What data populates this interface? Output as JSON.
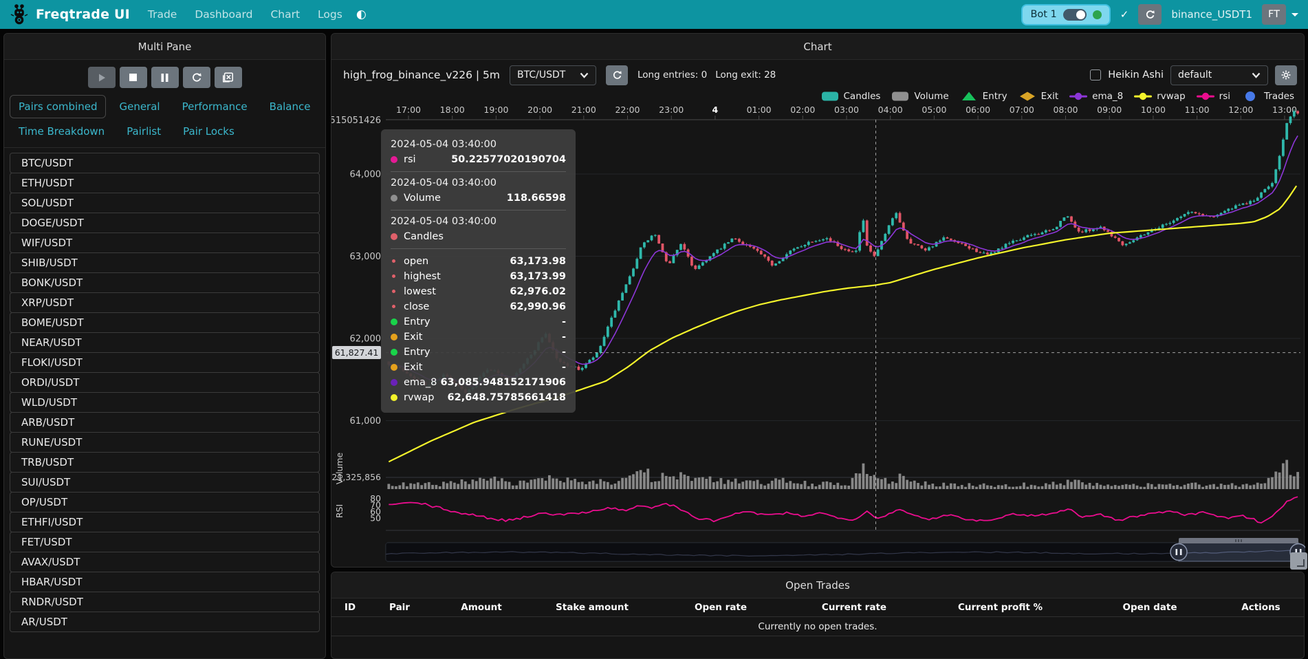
{
  "navbar": {
    "brand": "Freqtrade UI",
    "links": [
      "Trade",
      "Dashboard",
      "Chart",
      "Logs"
    ],
    "bot": {
      "name": "Bot 1",
      "online": true
    },
    "account": "binance_USDT1",
    "avatar": "FT"
  },
  "multi_pane": {
    "title": "Multi Pane",
    "tabs": [
      "Pairs combined",
      "General",
      "Performance",
      "Balance",
      "Time Breakdown",
      "Pairlist",
      "Pair Locks"
    ],
    "active_tab": "Pairs combined",
    "pairs": [
      "BTC/USDT",
      "ETH/USDT",
      "SOL/USDT",
      "DOGE/USDT",
      "WIF/USDT",
      "SHIB/USDT",
      "BONK/USDT",
      "XRP/USDT",
      "BOME/USDT",
      "NEAR/USDT",
      "FLOKI/USDT",
      "ORDI/USDT",
      "WLD/USDT",
      "ARB/USDT",
      "RUNE/USDT",
      "TRB/USDT",
      "SUI/USDT",
      "OP/USDT",
      "ETHFI/USDT",
      "FET/USDT",
      "AVAX/USDT",
      "HBAR/USDT",
      "RNDR/USDT",
      "AR/USDT"
    ]
  },
  "chart_panel": {
    "title": "Chart",
    "strategy": "high_frog_binance_v226 | 5m",
    "pair_select": "BTC/USDT",
    "long_entries_label": "Long entries: 0",
    "long_exit_label": "Long exit: 28",
    "heikin_ashi_label": "Heikin Ashi",
    "plot_config_select": "default",
    "legend": [
      {
        "label": "Candles",
        "swatch": "pill",
        "color": "#2bb3a6"
      },
      {
        "label": "Volume",
        "swatch": "pill",
        "color": "#8f8f8f"
      },
      {
        "label": "Entry",
        "swatch": "triangle",
        "color": "#18c15c"
      },
      {
        "label": "Exit",
        "swatch": "diamond",
        "color": "#d9a426"
      },
      {
        "label": "ema_8",
        "swatch": "line",
        "color": "#8d36d8"
      },
      {
        "label": "rvwap",
        "swatch": "line",
        "color": "#f3f32b"
      },
      {
        "label": "rsi",
        "swatch": "line",
        "color": "#ea0d8e"
      },
      {
        "label": "Trades",
        "swatch": "circle",
        "color": "#4779e8"
      }
    ]
  },
  "tooltip": {
    "sections": [
      {
        "date": "2024-05-04 03:40:00",
        "rows": [
          {
            "label": "rsi",
            "dot": "#e61a96",
            "value": "50.22577020190704"
          }
        ]
      },
      {
        "date": "2024-05-04 03:40:00",
        "rows": [
          {
            "label": "Volume",
            "dot": "#8f8f8f",
            "value": "118.66598"
          }
        ]
      },
      {
        "date": "2024-05-04 03:40:00",
        "rows": [
          {
            "label": "Candles",
            "dot": "#e0606a",
            "value": ""
          },
          {
            "label": "open",
            "dot": "#e0606a",
            "small": true,
            "value": "63,173.98"
          },
          {
            "label": "highest",
            "dot": "#e0606a",
            "small": true,
            "value": "63,173.99"
          },
          {
            "label": "lowest",
            "dot": "#e0606a",
            "small": true,
            "value": "62,976.02"
          },
          {
            "label": "close",
            "dot": "#e0606a",
            "small": true,
            "value": "62,990.96"
          },
          {
            "label": "Entry",
            "dot": "#19d44a",
            "value": "-"
          },
          {
            "label": "Exit",
            "dot": "#e5a11c",
            "value": "-"
          },
          {
            "label": "Entry",
            "dot": "#19d44a",
            "value": "-"
          },
          {
            "label": "Exit",
            "dot": "#e5a11c",
            "value": "-"
          },
          {
            "label": "ema_8",
            "dot": "#6a21b8",
            "value": "63,085.948152171906"
          },
          {
            "label": "rvwap",
            "dot": "#f3f32b",
            "value": "62,648.75785661418"
          }
        ]
      }
    ]
  },
  "chart_data": {
    "type": "candlestick",
    "pair": "BTC/USDT",
    "timeframe": "5m",
    "x_axis": {
      "labels": [
        "17:00",
        "18:00",
        "19:00",
        "20:00",
        "21:00",
        "22:00",
        "23:00",
        "4",
        "01:00",
        "02:00",
        "03:00",
        "04:00",
        "05:00",
        "06:00",
        "07:00",
        "08:00",
        "09:00",
        "10:00",
        "11:00",
        "12:00",
        "13:00"
      ],
      "bold_index": 7
    },
    "price_axis": {
      "ticks": [
        "64,000",
        "63,000",
        "62,000",
        "61,000"
      ],
      "tick_values": [
        64000,
        63000,
        62000,
        61000
      ],
      "top_label": "515051426",
      "pointer_label": "61,827.41",
      "pointer_value": 61827.41
    },
    "volume_axis": {
      "label": "21,325,856",
      "axis_name": "Volume"
    },
    "rsi_axis": {
      "ticks": [
        "80",
        "70",
        "60",
        "50"
      ],
      "tick_values": [
        80,
        70,
        60,
        50
      ],
      "axis_name": "RSI"
    },
    "crosshair": {
      "t": 10.667,
      "time_label": "2024-05-04 03:40:00",
      "price": 61827.41
    },
    "colors": {
      "up": "#2fb8ab",
      "down": "#e05566",
      "volume": "#9b9b9b",
      "ema_8": "#8d36d8",
      "rvwap": "#f3f32b",
      "rsi": "#ea0d8e"
    },
    "price_path": [
      [
        -0.45,
        61720
      ],
      [
        0,
        61600
      ],
      [
        0.5,
        61420
      ],
      [
        0.9,
        61560
      ],
      [
        1.4,
        61330
      ],
      [
        1.9,
        61640
      ],
      [
        2.4,
        61500
      ],
      [
        2.9,
        61810
      ],
      [
        3.2,
        62080
      ],
      [
        3.5,
        61720
      ],
      [
        4.0,
        61620
      ],
      [
        4.4,
        61820
      ],
      [
        4.8,
        62350
      ],
      [
        5.1,
        62700
      ],
      [
        5.4,
        63120
      ],
      [
        5.7,
        63280
      ],
      [
        6.0,
        62880
      ],
      [
        6.3,
        63160
      ],
      [
        6.6,
        62840
      ],
      [
        7.0,
        63010
      ],
      [
        7.5,
        63220
      ],
      [
        8.0,
        63080
      ],
      [
        8.4,
        62890
      ],
      [
        8.8,
        63060
      ],
      [
        9.2,
        63170
      ],
      [
        9.6,
        63230
      ],
      [
        10.0,
        63090
      ],
      [
        10.3,
        63060
      ],
      [
        10.45,
        63480
      ],
      [
        10.55,
        63120
      ],
      [
        10.72,
        62990
      ],
      [
        11.0,
        63300
      ],
      [
        11.2,
        63540
      ],
      [
        11.5,
        63180
      ],
      [
        11.9,
        63080
      ],
      [
        12.3,
        63220
      ],
      [
        12.8,
        63120
      ],
      [
        13.3,
        63010
      ],
      [
        13.8,
        63160
      ],
      [
        14.3,
        63260
      ],
      [
        14.8,
        63320
      ],
      [
        15.1,
        63500
      ],
      [
        15.4,
        63290
      ],
      [
        15.9,
        63360
      ],
      [
        16.4,
        63140
      ],
      [
        16.9,
        63280
      ],
      [
        17.4,
        63400
      ],
      [
        17.9,
        63540
      ],
      [
        18.4,
        63480
      ],
      [
        18.9,
        63590
      ],
      [
        19.4,
        63680
      ],
      [
        19.8,
        63900
      ],
      [
        20.0,
        64300
      ],
      [
        20.15,
        64650
      ],
      [
        20.3,
        64750
      ]
    ],
    "rvwap_path": [
      [
        -0.45,
        60500
      ],
      [
        0.5,
        60750
      ],
      [
        1.5,
        60980
      ],
      [
        2.5,
        61150
      ],
      [
        3.5,
        61300
      ],
      [
        4.5,
        61480
      ],
      [
        5.0,
        61650
      ],
      [
        5.5,
        61850
      ],
      [
        6.0,
        62000
      ],
      [
        6.5,
        62120
      ],
      [
        7.0,
        62230
      ],
      [
        7.5,
        62330
      ],
      [
        8.0,
        62410
      ],
      [
        8.5,
        62470
      ],
      [
        9.0,
        62520
      ],
      [
        9.5,
        62570
      ],
      [
        10.0,
        62610
      ],
      [
        10.67,
        62649
      ],
      [
        11.0,
        62680
      ],
      [
        11.5,
        62760
      ],
      [
        12.0,
        62840
      ],
      [
        12.5,
        62910
      ],
      [
        13.0,
        62980
      ],
      [
        13.5,
        63040
      ],
      [
        14.0,
        63100
      ],
      [
        14.5,
        63150
      ],
      [
        15.0,
        63200
      ],
      [
        15.5,
        63240
      ],
      [
        16.0,
        63280
      ],
      [
        16.5,
        63300
      ],
      [
        17.0,
        63320
      ],
      [
        17.5,
        63340
      ],
      [
        18.0,
        63360
      ],
      [
        18.5,
        63380
      ],
      [
        19.0,
        63400
      ],
      [
        19.3,
        63420
      ],
      [
        19.6,
        63480
      ],
      [
        19.9,
        63580
      ],
      [
        20.1,
        63720
      ],
      [
        20.3,
        63880
      ]
    ],
    "rsi_path": [
      [
        -0.45,
        71
      ],
      [
        0.2,
        74
      ],
      [
        0.7,
        66
      ],
      [
        1.2,
        58
      ],
      [
        1.7,
        52
      ],
      [
        2.2,
        47
      ],
      [
        2.7,
        52
      ],
      [
        3.1,
        60
      ],
      [
        3.4,
        55
      ],
      [
        3.8,
        57
      ],
      [
        4.2,
        62
      ],
      [
        4.6,
        66
      ],
      [
        5.0,
        62
      ],
      [
        5.3,
        70
      ],
      [
        5.6,
        66
      ],
      [
        5.9,
        73
      ],
      [
        6.2,
        64
      ],
      [
        6.6,
        50
      ],
      [
        7.0,
        46
      ],
      [
        7.4,
        56
      ],
      [
        7.8,
        60
      ],
      [
        8.2,
        54
      ],
      [
        8.6,
        58
      ],
      [
        9.0,
        54
      ],
      [
        9.4,
        58
      ],
      [
        9.8,
        52
      ],
      [
        10.2,
        48
      ],
      [
        10.45,
        62
      ],
      [
        10.67,
        50.2
      ],
      [
        11.0,
        57
      ],
      [
        11.2,
        66
      ],
      [
        11.5,
        54
      ],
      [
        11.9,
        48
      ],
      [
        12.3,
        56
      ],
      [
        12.7,
        50
      ],
      [
        13.1,
        46
      ],
      [
        13.5,
        52
      ],
      [
        13.9,
        57
      ],
      [
        14.3,
        54
      ],
      [
        14.7,
        58
      ],
      [
        15.1,
        64
      ],
      [
        15.4,
        52
      ],
      [
        15.8,
        56
      ],
      [
        16.2,
        47
      ],
      [
        16.6,
        53
      ],
      [
        17.0,
        58
      ],
      [
        17.4,
        62
      ],
      [
        17.8,
        55
      ],
      [
        18.2,
        60
      ],
      [
        18.6,
        50
      ],
      [
        19.0,
        55
      ],
      [
        19.3,
        48
      ],
      [
        19.5,
        44
      ],
      [
        19.8,
        58
      ],
      [
        20.0,
        72
      ],
      [
        20.15,
        80
      ],
      [
        20.3,
        84
      ]
    ],
    "volume_profile": [
      [
        -0.45,
        0.18
      ],
      [
        0.5,
        0.2
      ],
      [
        1.0,
        0.25
      ],
      [
        1.5,
        0.3
      ],
      [
        2.0,
        0.35
      ],
      [
        2.5,
        0.28
      ],
      [
        3.0,
        0.32
      ],
      [
        3.3,
        0.45
      ],
      [
        3.7,
        0.3
      ],
      [
        4.2,
        0.25
      ],
      [
        4.7,
        0.4
      ],
      [
        5.0,
        0.55
      ],
      [
        5.3,
        0.65
      ],
      [
        5.6,
        0.5
      ],
      [
        5.9,
        0.45
      ],
      [
        6.2,
        0.55
      ],
      [
        6.5,
        0.4
      ],
      [
        7.0,
        0.35
      ],
      [
        7.5,
        0.3
      ],
      [
        8.0,
        0.28
      ],
      [
        8.5,
        0.32
      ],
      [
        9.0,
        0.25
      ],
      [
        9.5,
        0.22
      ],
      [
        10.0,
        0.2
      ],
      [
        10.45,
        0.85
      ],
      [
        10.7,
        0.35
      ],
      [
        11.0,
        0.3
      ],
      [
        11.2,
        0.5
      ],
      [
        11.5,
        0.25
      ],
      [
        12.0,
        0.2
      ],
      [
        12.5,
        0.18
      ],
      [
        13.0,
        0.16
      ],
      [
        13.5,
        0.18
      ],
      [
        14.0,
        0.2
      ],
      [
        14.5,
        0.16
      ],
      [
        15.1,
        0.35
      ],
      [
        15.5,
        0.2
      ],
      [
        16.0,
        0.15
      ],
      [
        16.5,
        0.14
      ],
      [
        17.0,
        0.18
      ],
      [
        17.5,
        0.15
      ],
      [
        18.0,
        0.2
      ],
      [
        18.5,
        0.16
      ],
      [
        19.0,
        0.18
      ],
      [
        19.4,
        0.25
      ],
      [
        19.8,
        0.6
      ],
      [
        20.0,
        0.8
      ],
      [
        20.15,
        0.95
      ],
      [
        20.3,
        0.7
      ]
    ]
  },
  "open_trades": {
    "title": "Open Trades",
    "columns": [
      "ID",
      "Pair",
      "Amount",
      "Stake amount",
      "Open rate",
      "Current rate",
      "Current profit %",
      "Open date",
      "Actions"
    ],
    "empty_message": "Currently no open trades."
  }
}
